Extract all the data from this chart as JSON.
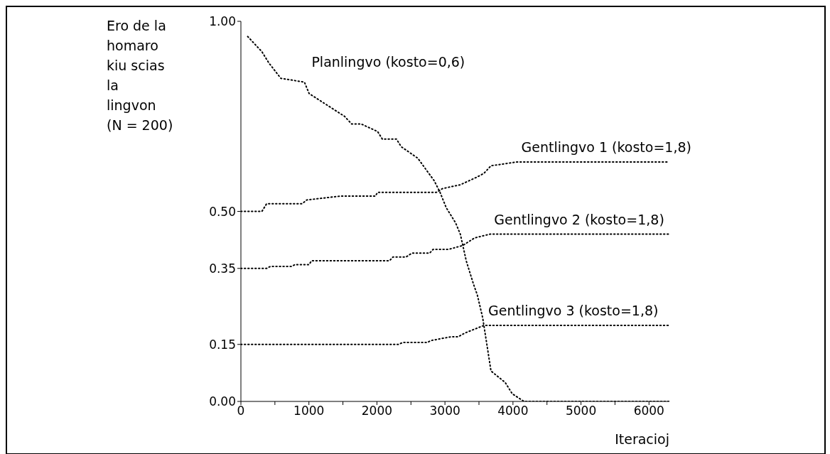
{
  "chart_data": {
    "type": "line",
    "ylabel": "Ero de la\nhomaro\nkiu scias\nla\nlingvon\n(N = 200)",
    "xlabel": "Iteracioj",
    "xlim": [
      0,
      6300
    ],
    "ylim": [
      0,
      1
    ],
    "xticks": [
      {
        "value": 0,
        "label": "0"
      },
      {
        "value": 500,
        "label": null
      },
      {
        "value": 1000,
        "label": "1000"
      },
      {
        "value": 1500,
        "label": null
      },
      {
        "value": 2000,
        "label": "2000"
      },
      {
        "value": 2500,
        "label": null
      },
      {
        "value": 3000,
        "label": "3000"
      },
      {
        "value": 3500,
        "label": null
      },
      {
        "value": 4000,
        "label": "4000"
      },
      {
        "value": 4500,
        "label": null
      },
      {
        "value": 5000,
        "label": "5000"
      },
      {
        "value": 5500,
        "label": null
      },
      {
        "value": 6000,
        "label": "6000"
      }
    ],
    "yticks": [
      {
        "value": 0,
        "label": "0.00"
      },
      {
        "value": 0.15,
        "label": "0.15"
      },
      {
        "value": 0.35,
        "label": "0.35"
      },
      {
        "value": 0.5,
        "label": "0.50"
      },
      {
        "value": 1,
        "label": "1.00"
      }
    ],
    "marker": "none",
    "line_style": "dotted",
    "grid": false,
    "legend": false,
    "series": [
      {
        "name": "Planlingvo (kosto=0,6)",
        "color": "#000000",
        "x": [
          100,
          309,
          413,
          587,
          934,
          1003,
          1524,
          1628,
          1767,
          2010,
          2080,
          2288,
          2358,
          2600,
          2844,
          2928,
          3018,
          3156,
          3226,
          3313,
          3417,
          3476,
          3555,
          3625,
          3677,
          3885,
          3990,
          4163,
          6300
        ],
        "values": [
          0.96,
          0.92,
          0.89,
          0.85,
          0.84,
          0.81,
          0.75,
          0.73,
          0.73,
          0.71,
          0.69,
          0.69,
          0.67,
          0.64,
          0.58,
          0.55,
          0.51,
          0.47,
          0.44,
          0.37,
          0.31,
          0.28,
          0.22,
          0.14,
          0.08,
          0.05,
          0.02,
          0,
          0
        ]
      },
      {
        "name": "Gentlingvo 1 (kosto=1,8)",
        "color": "#000000",
        "x": [
          0,
          309,
          378,
          691,
          760,
          899,
          968,
          1455,
          1490,
          1976,
          2010,
          2600,
          2635,
          2875,
          2966,
          3226,
          3469,
          3573,
          3677,
          4059,
          6300
        ],
        "values": [
          0.5,
          0.5,
          0.52,
          0.52,
          0.52,
          0.52,
          0.53,
          0.54,
          0.54,
          0.54,
          0.55,
          0.55,
          0.55,
          0.55,
          0.56,
          0.57,
          0.59,
          0.6,
          0.62,
          0.63,
          0.63
        ]
      },
      {
        "name": "Gentlingvo 2 (kosto=1,8)",
        "color": "#000000",
        "x": [
          0,
          378,
          431,
          743,
          795,
          1003,
          1038,
          1490,
          1524,
          1837,
          1872,
          2184,
          2236,
          2427,
          2514,
          2774,
          2826,
          3052,
          3260,
          3434,
          3660,
          6300
        ],
        "values": [
          0.35,
          0.35,
          0.355,
          0.355,
          0.36,
          0.36,
          0.37,
          0.37,
          0.37,
          0.37,
          0.37,
          0.37,
          0.38,
          0.38,
          0.39,
          0.39,
          0.4,
          0.4,
          0.41,
          0.43,
          0.44,
          0.44
        ]
      },
      {
        "name": "Gentlingvo 3 (kosto=1,8)",
        "color": "#000000",
        "x": [
          0,
          2323,
          2375,
          2740,
          2792,
          3087,
          3191,
          3295,
          3434,
          3573,
          6300
        ],
        "values": [
          0.15,
          0.15,
          0.155,
          0.155,
          0.16,
          0.17,
          0.17,
          0.18,
          0.19,
          0.2,
          0.2
        ]
      }
    ]
  }
}
